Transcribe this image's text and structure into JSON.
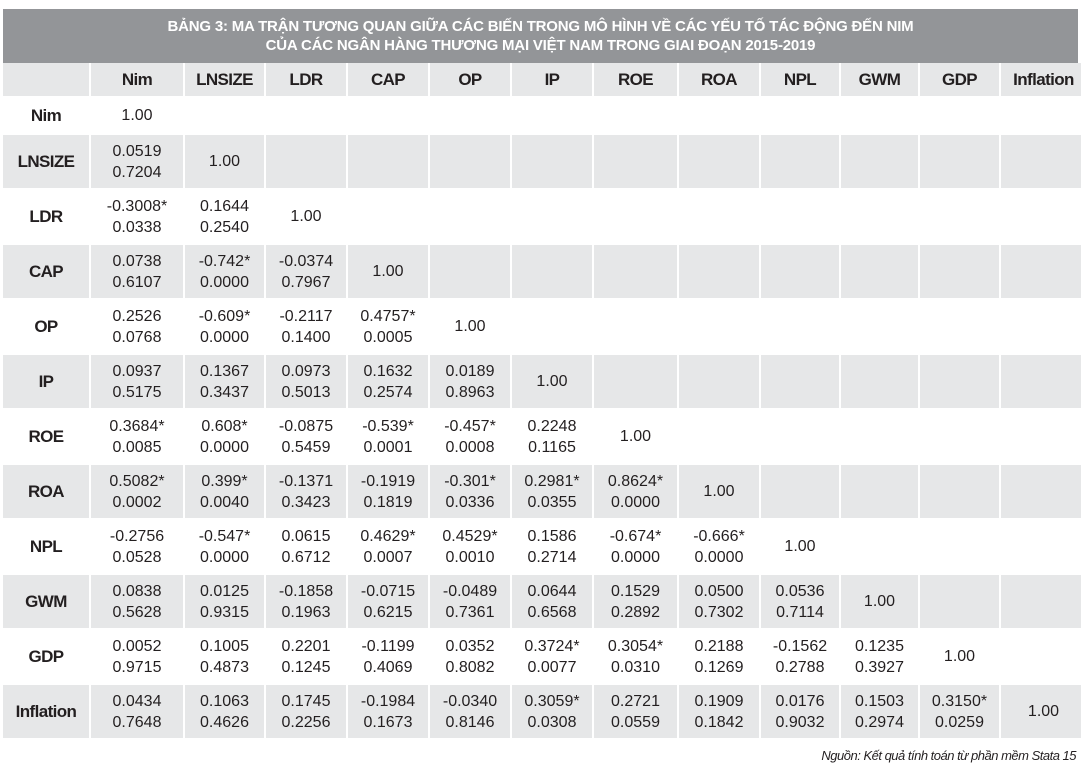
{
  "title": {
    "line1": "BẢNG 3: MA TRẬN TƯƠNG QUAN GIỮA CÁC BIẾN TRONG MÔ HÌNH VỀ CÁC YẾU TỐ TÁC ĐỘNG ĐẾN NIM",
    "line2": "CỦA CÁC NGÂN HÀNG THƯƠNG MẠI VIỆT NAM TRONG GIAI ĐOẠN 2015-2019"
  },
  "columns": [
    "Nim",
    "LNSIZE",
    "LDR",
    "CAP",
    "OP",
    "IP",
    "ROE",
    "ROA",
    "NPL",
    "GWM",
    "GDP",
    "Inflation"
  ],
  "rows": [
    {
      "label": "Nim",
      "cells": [
        [
          "1.00"
        ]
      ]
    },
    {
      "label": "LNSIZE",
      "cells": [
        [
          "0.0519",
          "0.7204"
        ],
        [
          "1.00"
        ]
      ]
    },
    {
      "label": "LDR",
      "cells": [
        [
          "-0.3008*",
          "0.0338"
        ],
        [
          "0.1644",
          "0.2540"
        ],
        [
          "1.00"
        ]
      ]
    },
    {
      "label": "CAP",
      "cells": [
        [
          "0.0738",
          "0.6107"
        ],
        [
          "-0.742*",
          "0.0000"
        ],
        [
          "-0.0374",
          "0.7967"
        ],
        [
          "1.00"
        ]
      ]
    },
    {
      "label": "OP",
      "cells": [
        [
          "0.2526",
          "0.0768"
        ],
        [
          "-0.609*",
          "0.0000"
        ],
        [
          "-0.2117",
          "0.1400"
        ],
        [
          "0.4757*",
          "0.0005"
        ],
        [
          "1.00"
        ]
      ]
    },
    {
      "label": "IP",
      "cells": [
        [
          "0.0937",
          "0.5175"
        ],
        [
          "0.1367",
          "0.3437"
        ],
        [
          "0.0973",
          "0.5013"
        ],
        [
          "0.1632",
          "0.2574"
        ],
        [
          "0.0189",
          "0.8963"
        ],
        [
          "1.00"
        ]
      ]
    },
    {
      "label": "ROE",
      "cells": [
        [
          "0.3684*",
          "0.0085"
        ],
        [
          "0.608*",
          "0.0000"
        ],
        [
          "-0.0875",
          "0.5459"
        ],
        [
          "-0.539*",
          "0.0001"
        ],
        [
          "-0.457*",
          "0.0008"
        ],
        [
          "0.2248",
          "0.1165"
        ],
        [
          "1.00"
        ]
      ]
    },
    {
      "label": "ROA",
      "cells": [
        [
          "0.5082*",
          "0.0002"
        ],
        [
          "0.399*",
          "0.0040"
        ],
        [
          "-0.1371",
          "0.3423"
        ],
        [
          "-0.1919",
          "0.1819"
        ],
        [
          "-0.301*",
          "0.0336"
        ],
        [
          "0.2981*",
          "0.0355"
        ],
        [
          "0.8624*",
          "0.0000"
        ],
        [
          "1.00"
        ]
      ]
    },
    {
      "label": "NPL",
      "cells": [
        [
          "-0.2756",
          "0.0528"
        ],
        [
          "-0.547*",
          "0.0000"
        ],
        [
          "0.0615",
          "0.6712"
        ],
        [
          "0.4629*",
          "0.0007"
        ],
        [
          "0.4529*",
          "0.0010"
        ],
        [
          "0.1586",
          "0.2714"
        ],
        [
          "-0.674*",
          "0.0000"
        ],
        [
          "-0.666*",
          "0.0000"
        ],
        [
          "1.00"
        ]
      ]
    },
    {
      "label": "GWM",
      "cells": [
        [
          "0.0838",
          "0.5628"
        ],
        [
          "0.0125",
          "0.9315"
        ],
        [
          "-0.1858",
          "0.1963"
        ],
        [
          "-0.0715",
          "0.6215"
        ],
        [
          "-0.0489",
          "0.7361"
        ],
        [
          "0.0644",
          "0.6568"
        ],
        [
          "0.1529",
          "0.2892"
        ],
        [
          "0.0500",
          "0.7302"
        ],
        [
          "0.0536",
          "0.7114"
        ],
        [
          "1.00"
        ]
      ]
    },
    {
      "label": "GDP",
      "cells": [
        [
          "0.0052",
          "0.9715"
        ],
        [
          "0.1005",
          "0.4873"
        ],
        [
          "0.2201",
          "0.1245"
        ],
        [
          "-0.1199",
          "0.4069"
        ],
        [
          "0.0352",
          "0.8082"
        ],
        [
          "0.3724*",
          "0.0077"
        ],
        [
          "0.3054*",
          "0.0310"
        ],
        [
          "0.2188",
          "0.1269"
        ],
        [
          "-0.1562",
          "0.2788"
        ],
        [
          "0.1235",
          "0.3927"
        ],
        [
          "1.00"
        ]
      ]
    },
    {
      "label": "Inflation",
      "cells": [
        [
          "0.0434",
          "0.7648"
        ],
        [
          "0.1063",
          "0.4626"
        ],
        [
          "0.1745",
          "0.2256"
        ],
        [
          "-0.1984",
          "0.1673"
        ],
        [
          "-0.0340",
          "0.8146"
        ],
        [
          "0.3059*",
          "0.0308"
        ],
        [
          "0.2721",
          "0.0559"
        ],
        [
          "0.1909",
          "0.1842"
        ],
        [
          "0.0176",
          "0.9032"
        ],
        [
          "0.1503",
          "0.2974"
        ],
        [
          "0.3150*",
          "0.0259"
        ],
        [
          "1.00"
        ]
      ]
    }
  ],
  "source_note": "Nguồn: Kết quả tính toán từ phần mềm Stata 15",
  "colors": {
    "title_bg": "#939598",
    "shade": "#e6e7e8"
  }
}
